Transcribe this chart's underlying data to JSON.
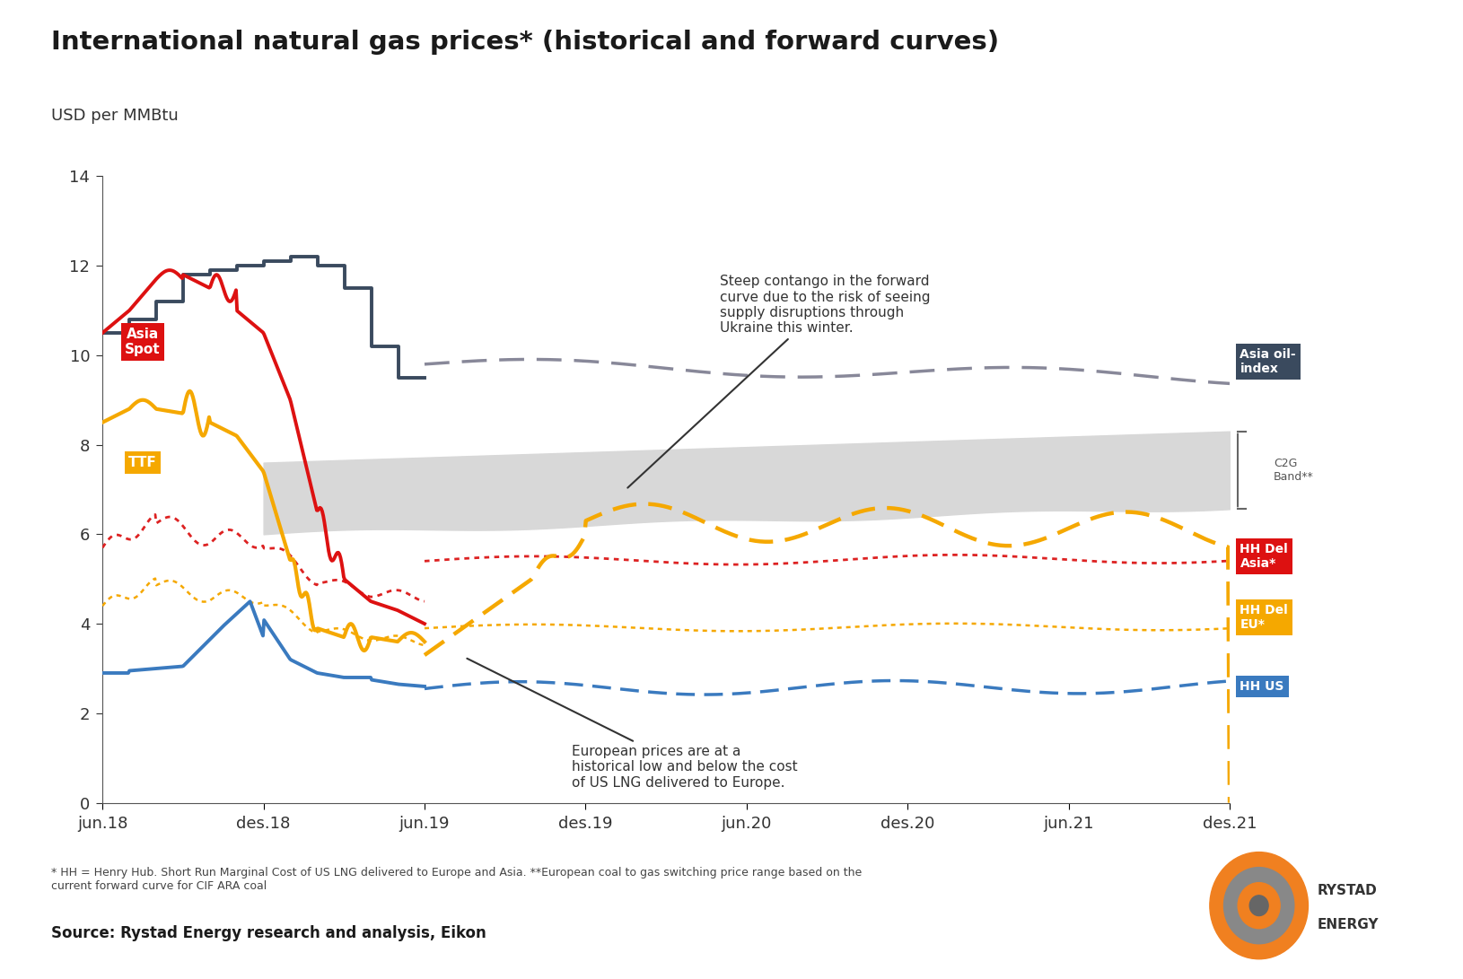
{
  "title": "International natural gas prices* (historical and forward curves)",
  "subtitle": "USD per MMBtu",
  "footnote": "* HH = Henry Hub. Short Run Marginal Cost of US LNG delivered to Europe and Asia. **European coal to gas switching price range based on the\ncurrent forward curve for CIF ARA coal",
  "source": "Source: Rystad Energy research and analysis, Eikon",
  "background_color": "#ffffff",
  "ylim": [
    0,
    14
  ],
  "yticks": [
    0,
    2,
    4,
    6,
    8,
    10,
    12,
    14
  ],
  "xtick_labels": [
    "jun.18",
    "des.18",
    "jun.19",
    "des.19",
    "jun.20",
    "des.20",
    "jun.21",
    "des.21"
  ],
  "colors": {
    "asia_spot": "#dd1111",
    "ttf": "#f5a800",
    "asia_oil_hist": "#3a4a5e",
    "asia_oil_fwd": "#888899",
    "hh_del_asia": "#dd2222",
    "hh_del_eu": "#f5a800",
    "hh_us": "#3a7abf",
    "c2g_fill": "#d8d8d8",
    "label_asia_spot_bg": "#dd1111",
    "label_ttf_bg": "#f5a800",
    "label_asia_oil_bg": "#3a4a5e",
    "label_hh_del_asia_bg": "#dd1111",
    "label_hh_del_eu_bg": "#f5a800",
    "label_hh_us_bg": "#3a7abf"
  }
}
